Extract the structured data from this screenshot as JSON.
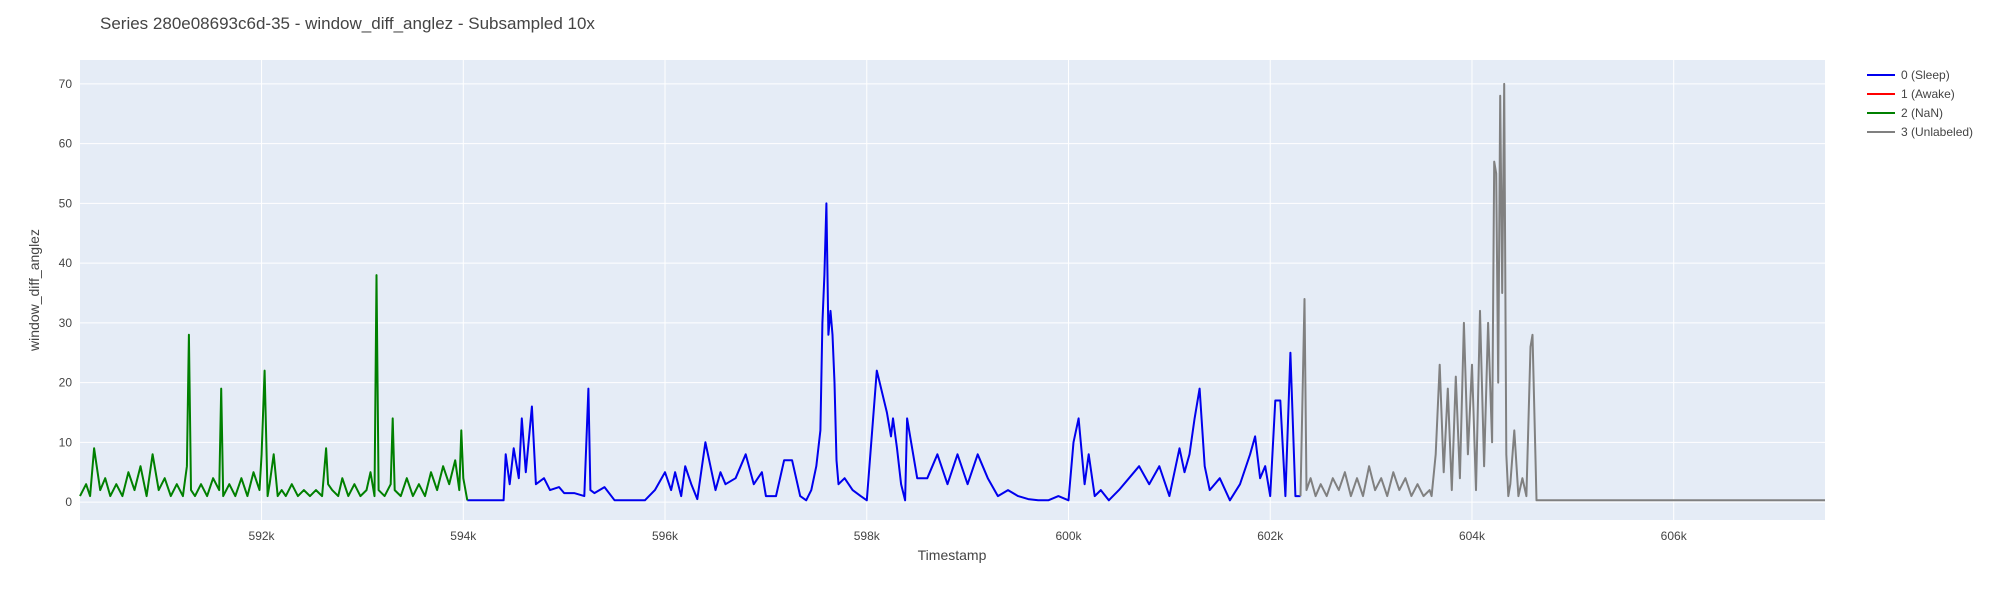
{
  "chart_data": {
    "type": "line",
    "title": "Series 280e08693c6d-35 - window_diff_anglez - Subsampled 10x",
    "xlabel": "Timestamp",
    "ylabel": "window_diff_anglez",
    "xlim": [
      590200,
      607500
    ],
    "ylim": [
      -3,
      74
    ],
    "x_ticks": [
      592000,
      594000,
      596000,
      598000,
      600000,
      602000,
      604000,
      606000
    ],
    "x_tick_labels": [
      "592k",
      "594k",
      "596k",
      "598k",
      "600k",
      "602k",
      "604k",
      "606k"
    ],
    "y_ticks": [
      0,
      10,
      20,
      30,
      40,
      50,
      60,
      70
    ],
    "y_tick_labels": [
      "0",
      "10",
      "20",
      "30",
      "40",
      "50",
      "60",
      "70"
    ],
    "grid": true,
    "legend_position": "top-right",
    "colors": {
      "plot_bg": "#e5ecf6",
      "grid": "#ffffff",
      "paper": "#ffffff",
      "text": "#444444"
    },
    "series": [
      {
        "name": "0 (Sleep)",
        "color": "#0000ee",
        "x": [
          594040,
          594400,
          594420,
          594460,
          594500,
          594550,
          594580,
          594620,
          594680,
          594720,
          594800,
          594860,
          594950,
          595000,
          595100,
          595200,
          595240,
          595260,
          595300,
          595400,
          595500,
          595600,
          595700,
          595800,
          595900,
          596000,
          596060,
          596100,
          596160,
          596200,
          596260,
          596320,
          596400,
          596500,
          596550,
          596600,
          596700,
          596800,
          596880,
          596960,
          597000,
          597100,
          597180,
          597260,
          597340,
          597400,
          597450,
          597500,
          597540,
          597560,
          597580,
          597600,
          597620,
          597640,
          597660,
          597680,
          597700,
          597720,
          597780,
          597860,
          597940,
          598000,
          598100,
          598200,
          598240,
          598260,
          598300,
          598340,
          598380,
          598400,
          598500,
          598600,
          598700,
          598800,
          598900,
          599000,
          599100,
          599200,
          599300,
          599400,
          599500,
          599600,
          599700,
          599800,
          599900,
          600000,
          600050,
          600100,
          600160,
          600200,
          600260,
          600320,
          600400,
          600500,
          600600,
          600700,
          600800,
          600900,
          601000,
          601100,
          601150,
          601200,
          601250,
          601300,
          601350,
          601400,
          601500,
          601600,
          601700,
          601800,
          601850,
          601900,
          601950,
          602000,
          602050,
          602100,
          602150,
          602200,
          602250,
          602300
        ],
        "y": [
          0.3,
          0.3,
          8,
          3,
          9,
          4,
          14,
          5,
          16,
          3,
          4,
          2,
          2.5,
          1.5,
          1.5,
          1,
          19,
          2,
          1.5,
          2.5,
          0.3,
          0.3,
          0.3,
          0.3,
          2,
          5,
          2,
          5,
          1,
          6,
          3,
          0.5,
          10,
          2,
          5,
          3,
          4,
          8,
          3,
          5,
          1,
          1,
          7,
          7,
          1,
          0.3,
          2,
          6,
          12,
          30,
          38,
          50,
          28,
          32,
          28,
          20,
          7,
          3,
          4,
          2,
          1,
          0.3,
          22,
          15,
          11,
          14,
          9,
          3,
          0.3,
          14,
          4,
          4,
          8,
          3,
          8,
          3,
          8,
          4,
          1,
          2,
          1,
          0.5,
          0.3,
          0.3,
          1,
          0.3,
          10,
          14,
          3,
          8,
          1,
          2,
          0.3,
          2,
          4,
          6,
          3,
          6,
          1,
          9,
          5,
          8,
          14,
          19,
          6,
          2,
          4,
          0.3,
          3,
          8,
          11,
          4,
          6,
          1,
          17,
          17,
          1,
          25,
          1,
          1
        ]
      },
      {
        "name": "1 (Awake)",
        "color": "#ff0000",
        "x": [],
        "y": []
      },
      {
        "name": "2 (NaN)",
        "color": "#008000",
        "x": [
          590200,
          590260,
          590300,
          590340,
          590400,
          590450,
          590500,
          590560,
          590620,
          590680,
          590740,
          590800,
          590860,
          590920,
          590980,
          591040,
          591100,
          591160,
          591220,
          591260,
          591280,
          591300,
          591340,
          591400,
          591460,
          591520,
          591580,
          591600,
          591620,
          591680,
          591740,
          591800,
          591860,
          591920,
          591980,
          592000,
          592030,
          592060,
          592080,
          592120,
          592160,
          592200,
          592240,
          592300,
          592360,
          592420,
          592480,
          592540,
          592600,
          592640,
          592660,
          592700,
          592760,
          592800,
          592860,
          592920,
          592980,
          593040,
          593080,
          593120,
          593140,
          593160,
          593220,
          593280,
          593300,
          593320,
          593380,
          593440,
          593500,
          593560,
          593620,
          593680,
          593740,
          593800,
          593860,
          593920,
          593960,
          593980,
          594000,
          594040
        ],
        "y": [
          1,
          3,
          1,
          9,
          2,
          4,
          1,
          3,
          1,
          5,
          2,
          6,
          1,
          8,
          2,
          4,
          1,
          3,
          1,
          6,
          28,
          2,
          1,
          3,
          1,
          4,
          2,
          19,
          1,
          3,
          1,
          4,
          1,
          5,
          2,
          8,
          22,
          1,
          3,
          8,
          1,
          2,
          1,
          3,
          1,
          2,
          1,
          2,
          1,
          9,
          3,
          2,
          1,
          4,
          1,
          3,
          1,
          2,
          5,
          1,
          38,
          2,
          1,
          3,
          14,
          2,
          1,
          4,
          1,
          3,
          1,
          5,
          2,
          6,
          3,
          7,
          2,
          12,
          4,
          0.3
        ]
      },
      {
        "name": "3 (Unlabeled)",
        "color": "#808080",
        "x": [
          602300,
          602340,
          602360,
          602400,
          602450,
          602500,
          602560,
          602620,
          602680,
          602740,
          602800,
          602860,
          602920,
          602980,
          603040,
          603100,
          603160,
          603220,
          603280,
          603340,
          603400,
          603460,
          603520,
          603580,
          603600,
          603640,
          603680,
          603720,
          603760,
          603800,
          603840,
          603880,
          603920,
          603960,
          604000,
          604040,
          604080,
          604120,
          604160,
          604200,
          604220,
          604240,
          604260,
          604280,
          604300,
          604320,
          604340,
          604360,
          604380,
          604420,
          604460,
          604500,
          604540,
          604580,
          604600,
          604640,
          607500
        ],
        "y": [
          1,
          34,
          2,
          4,
          1,
          3,
          1,
          4,
          2,
          5,
          1,
          4,
          1,
          6,
          2,
          4,
          1,
          5,
          2,
          4,
          1,
          3,
          1,
          2,
          1,
          8,
          23,
          5,
          19,
          2,
          21,
          4,
          30,
          8,
          23,
          2,
          32,
          6,
          30,
          10,
          57,
          55,
          20,
          68,
          35,
          70,
          8,
          1,
          3,
          12,
          1,
          4,
          1,
          26,
          28,
          0.3,
          0.3
        ]
      }
    ]
  }
}
